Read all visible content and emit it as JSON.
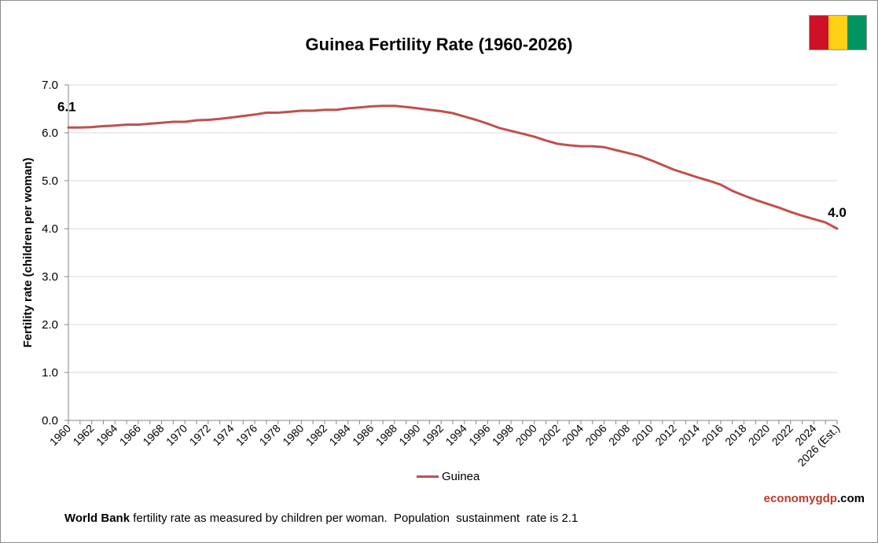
{
  "header": {
    "flag_colors": [
      "#ce1126",
      "#fcd116",
      "#009460"
    ]
  },
  "footer": {
    "brand_part1": "economy",
    "brand_part2": "gdp",
    "brand_part3": ".com",
    "source_bold": "World Bank",
    "source_text": " fertility rate as measured by children per woman.  Population  sustainment  rate is 2.1"
  },
  "chart_data": {
    "type": "line",
    "title": "Guinea Fertility Rate (1960-2026)",
    "xlabel": "",
    "ylabel": "Fertility rate (children per woman)",
    "ylim": [
      0,
      7
    ],
    "y_ticks": [
      "0.0",
      "1.0",
      "2.0",
      "3.0",
      "4.0",
      "5.0",
      "6.0",
      "7.0"
    ],
    "x_tick_labels": [
      "1960",
      "1962",
      "1964",
      "1966",
      "1968",
      "1970",
      "1972",
      "1974",
      "1976",
      "1978",
      "1980",
      "1982",
      "1984",
      "1986",
      "1988",
      "1990",
      "1992",
      "1994",
      "1996",
      "1998",
      "2000",
      "2002",
      "2004",
      "2006",
      "2008",
      "2010",
      "2012",
      "2014",
      "2016",
      "2018",
      "2020",
      "2022",
      "2024",
      "2026 (Est.)"
    ],
    "grid": true,
    "legend_position": "bottom",
    "series": [
      {
        "name": "Guinea",
        "color": "#c0504d",
        "x": [
          1960,
          1961,
          1962,
          1963,
          1964,
          1965,
          1966,
          1967,
          1968,
          1969,
          1970,
          1971,
          1972,
          1973,
          1974,
          1975,
          1976,
          1977,
          1978,
          1979,
          1980,
          1981,
          1982,
          1983,
          1984,
          1985,
          1986,
          1987,
          1988,
          1989,
          1990,
          1991,
          1992,
          1993,
          1994,
          1995,
          1996,
          1997,
          1998,
          1999,
          2000,
          2001,
          2002,
          2003,
          2004,
          2005,
          2006,
          2007,
          2008,
          2009,
          2010,
          2011,
          2012,
          2013,
          2014,
          2015,
          2016,
          2017,
          2018,
          2019,
          2020,
          2021,
          2022,
          2023,
          2024,
          2025,
          2026
        ],
        "values": [
          6.11,
          6.11,
          6.12,
          6.14,
          6.15,
          6.17,
          6.17,
          6.19,
          6.21,
          6.23,
          6.23,
          6.26,
          6.27,
          6.29,
          6.32,
          6.35,
          6.38,
          6.42,
          6.42,
          6.44,
          6.46,
          6.46,
          6.48,
          6.48,
          6.51,
          6.53,
          6.55,
          6.56,
          6.56,
          6.54,
          6.51,
          6.48,
          6.45,
          6.41,
          6.34,
          6.27,
          6.19,
          6.1,
          6.04,
          5.98,
          5.92,
          5.84,
          5.77,
          5.74,
          5.72,
          5.72,
          5.7,
          5.64,
          5.58,
          5.52,
          5.43,
          5.33,
          5.23,
          5.15,
          5.07,
          5.0,
          4.92,
          4.79,
          4.69,
          4.6,
          4.52,
          4.44,
          4.35,
          4.27,
          4.2,
          4.13,
          4.0
        ]
      }
    ],
    "annotations": [
      {
        "x": 1960,
        "y": 6.11,
        "text": "6.1"
      },
      {
        "x": 2026,
        "y": 4.0,
        "text": "4.0"
      }
    ]
  }
}
